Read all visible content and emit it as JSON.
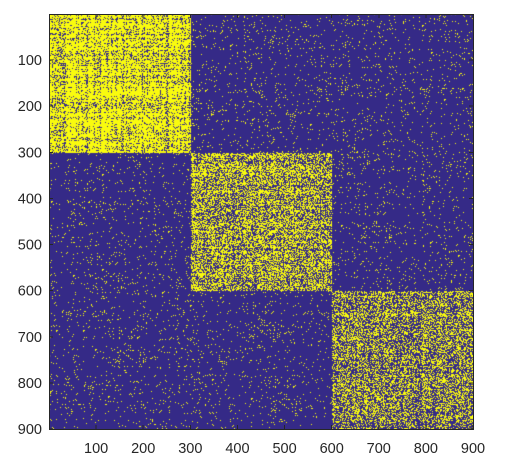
{
  "chart_data": {
    "type": "heatmap",
    "title": "",
    "xlabel": "",
    "ylabel": "",
    "size": 900,
    "xlim": [
      0,
      900
    ],
    "ylim": [
      900,
      0
    ],
    "grid": false,
    "colormap": {
      "zero": "#352A87",
      "one": "#F9FB0E"
    },
    "x_ticks": [
      100,
      200,
      300,
      400,
      500,
      600,
      700,
      800,
      900
    ],
    "y_ticks": [
      100,
      200,
      300,
      400,
      500,
      600,
      700,
      800,
      900
    ],
    "blocks": [
      {
        "start": 0,
        "end": 300,
        "density": 0.82
      },
      {
        "start": 300,
        "end": 600,
        "density": 0.55
      },
      {
        "start": 600,
        "end": 900,
        "density": 0.45
      }
    ],
    "background_density": 0.04
  }
}
